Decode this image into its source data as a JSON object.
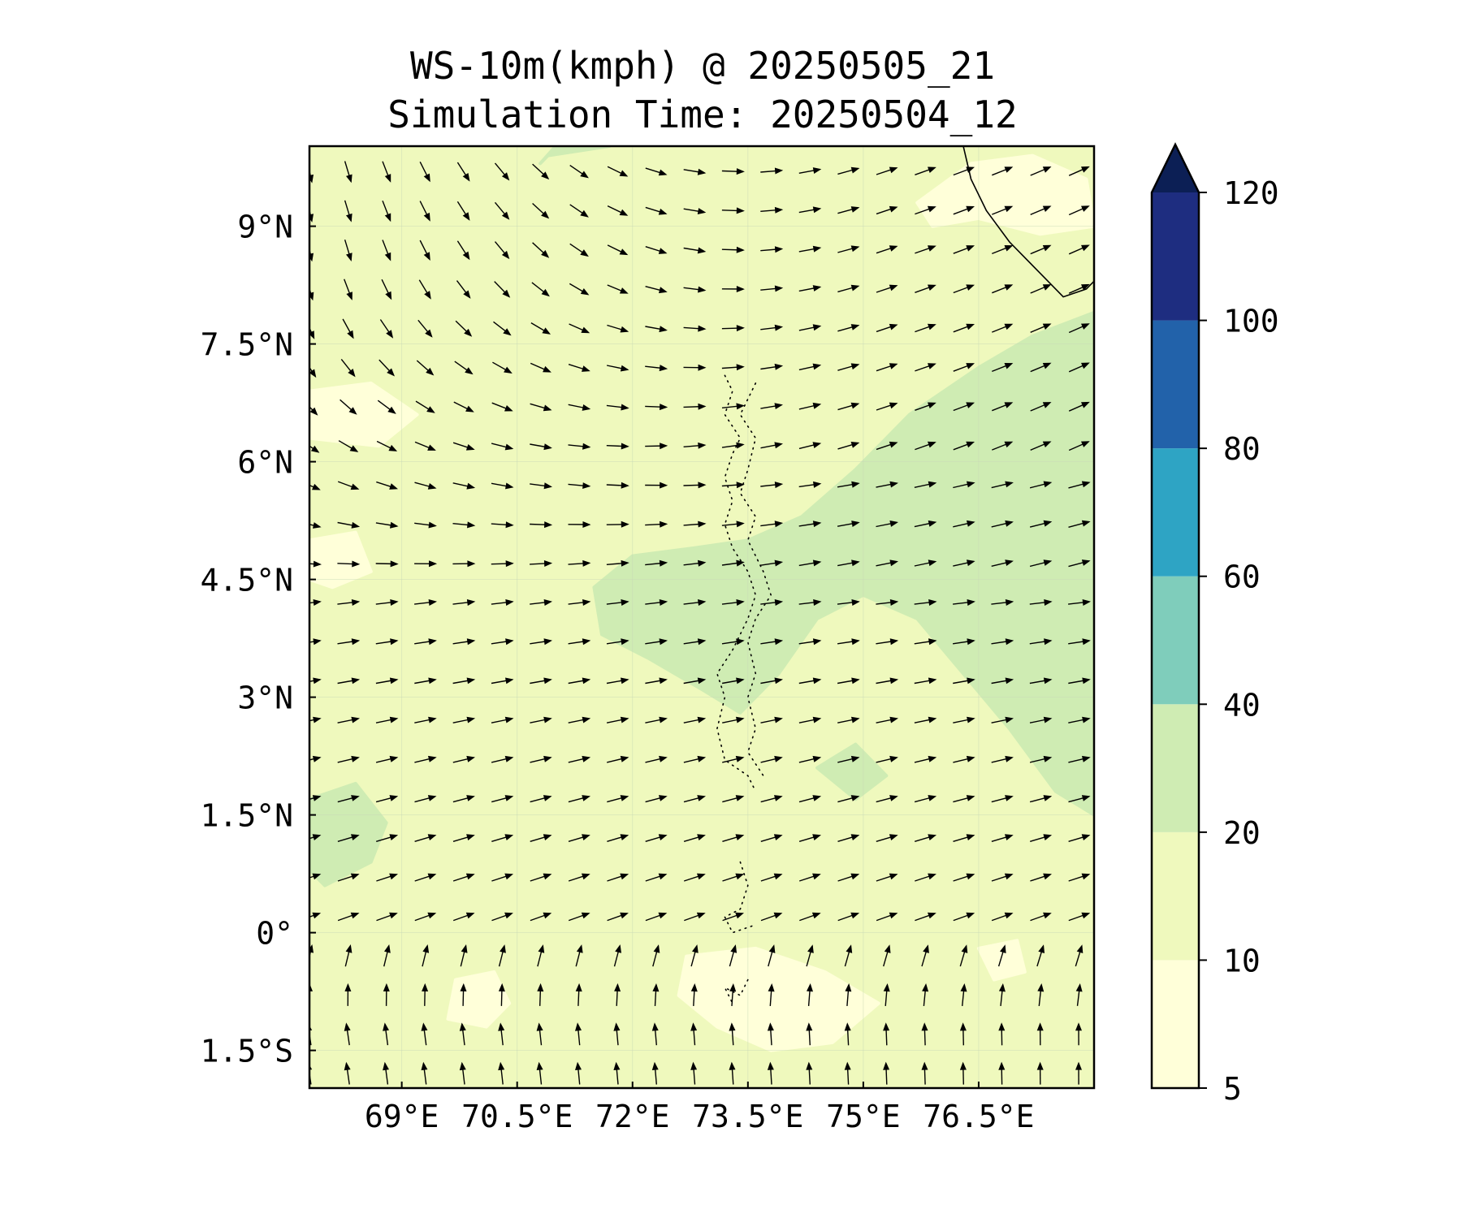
{
  "title": {
    "line1": "WS-10m(kmph) @ 20250505_21",
    "line2": "Simulation Time: 20250504_12"
  },
  "map": {
    "lon_range": [
      67.8,
      78.0
    ],
    "lat_range": [
      -1.98,
      10.02
    ],
    "lon_ticks": [
      {
        "value": 69.0,
        "label": "69°E"
      },
      {
        "value": 70.5,
        "label": "70.5°E"
      },
      {
        "value": 72.0,
        "label": "72°E"
      },
      {
        "value": 73.5,
        "label": "73.5°E"
      },
      {
        "value": 75.0,
        "label": "75°E"
      },
      {
        "value": 76.5,
        "label": "76.5°E"
      }
    ],
    "lat_ticks": [
      {
        "value": 9.0,
        "label": "9°N"
      },
      {
        "value": 7.5,
        "label": "7.5°N"
      },
      {
        "value": 6.0,
        "label": "6°N"
      },
      {
        "value": 4.5,
        "label": "4.5°N"
      },
      {
        "value": 3.0,
        "label": "3°N"
      },
      {
        "value": 1.5,
        "label": "1.5°N"
      },
      {
        "value": 0.0,
        "label": "0°"
      },
      {
        "value": -1.5,
        "label": "1.5°S"
      }
    ],
    "gridlines": true,
    "background_class": "10-20"
  },
  "colorbar": {
    "extend": "max",
    "levels": [
      {
        "from": 5,
        "to": 10,
        "color": "#ffffd9"
      },
      {
        "from": 10,
        "to": 20,
        "color": "#eff9bd"
      },
      {
        "from": 20,
        "to": 40,
        "color": "#cfecb3"
      },
      {
        "from": 40,
        "to": 60,
        "color": "#7fcdbb"
      },
      {
        "from": 60,
        "to": 80,
        "color": "#2ea4c4"
      },
      {
        "from": 80,
        "to": 100,
        "color": "#2262aa"
      },
      {
        "from": 100,
        "to": 120,
        "color": "#1e2d80"
      }
    ],
    "extend_color": "#0c1f55",
    "tick_labels": [
      "5",
      "10",
      "20",
      "40",
      "60",
      "80",
      "100",
      "120"
    ]
  },
  "speed_regions": [
    {
      "class": "20-40",
      "color": "#cfecb3",
      "polygon": [
        [
          74.9,
          5.9
        ],
        [
          75.6,
          6.6
        ],
        [
          76.5,
          7.2
        ],
        [
          77.2,
          7.6
        ],
        [
          78.0,
          7.9
        ],
        [
          78.0,
          1.5
        ],
        [
          77.5,
          1.8
        ],
        [
          76.9,
          2.6
        ],
        [
          76.3,
          3.3
        ],
        [
          75.7,
          4.0
        ],
        [
          75.0,
          4.3
        ],
        [
          74.4,
          4.0
        ],
        [
          73.9,
          3.3
        ],
        [
          73.4,
          2.8
        ],
        [
          72.9,
          3.1
        ],
        [
          72.2,
          3.5
        ],
        [
          71.6,
          3.8
        ],
        [
          71.5,
          4.4
        ],
        [
          72.0,
          4.8
        ],
        [
          72.8,
          4.9
        ],
        [
          73.5,
          5.0
        ],
        [
          74.2,
          5.3
        ]
      ]
    },
    {
      "class": "20-40",
      "color": "#cfecb3",
      "polygon": [
        [
          67.8,
          1.7
        ],
        [
          68.4,
          1.9
        ],
        [
          68.8,
          1.4
        ],
        [
          68.6,
          0.9
        ],
        [
          68.0,
          0.6
        ],
        [
          67.8,
          0.8
        ]
      ]
    },
    {
      "class": "20-40",
      "color": "#cfecb3",
      "polygon": [
        [
          70.9,
          9.9
        ],
        [
          71.7,
          10.02
        ],
        [
          71.0,
          10.02
        ],
        [
          70.8,
          9.8
        ]
      ]
    },
    {
      "class": "20-40",
      "color": "#cfecb3",
      "polygon": [
        [
          76.1,
          4.4
        ],
        [
          76.6,
          4.8
        ],
        [
          77.3,
          4.6
        ],
        [
          77.2,
          4.1
        ],
        [
          76.6,
          3.9
        ]
      ]
    },
    {
      "class": "20-40",
      "color": "#cfecb3",
      "polygon": [
        [
          74.4,
          2.1
        ],
        [
          74.9,
          2.4
        ],
        [
          75.3,
          2.0
        ],
        [
          74.9,
          1.7
        ]
      ]
    },
    {
      "class": "5-10",
      "color": "#ffffd9",
      "polygon": [
        [
          69.7,
          -0.6
        ],
        [
          70.2,
          -0.5
        ],
        [
          70.4,
          -0.9
        ],
        [
          70.1,
          -1.2
        ],
        [
          69.6,
          -1.1
        ]
      ]
    },
    {
      "class": "5-10",
      "color": "#ffffd9",
      "polygon": [
        [
          72.7,
          -0.3
        ],
        [
          73.6,
          -0.2
        ],
        [
          74.5,
          -0.5
        ],
        [
          75.2,
          -0.9
        ],
        [
          74.6,
          -1.4
        ],
        [
          73.8,
          -1.5
        ],
        [
          73.1,
          -1.2
        ],
        [
          72.6,
          -0.8
        ]
      ]
    },
    {
      "class": "5-10",
      "color": "#ffffd9",
      "polygon": [
        [
          75.7,
          9.3
        ],
        [
          76.4,
          9.8
        ],
        [
          77.2,
          9.9
        ],
        [
          77.9,
          9.6
        ],
        [
          78.0,
          9.0
        ],
        [
          77.3,
          8.9
        ],
        [
          76.5,
          9.1
        ],
        [
          75.9,
          9.0
        ]
      ]
    },
    {
      "class": "5-10",
      "color": "#ffffd9",
      "polygon": [
        [
          67.8,
          6.9
        ],
        [
          68.6,
          7.0
        ],
        [
          69.2,
          6.6
        ],
        [
          68.7,
          6.2
        ],
        [
          67.8,
          6.3
        ]
      ]
    },
    {
      "class": "5-10",
      "color": "#ffffd9",
      "polygon": [
        [
          67.8,
          5.0
        ],
        [
          68.4,
          5.1
        ],
        [
          68.6,
          4.6
        ],
        [
          68.1,
          4.4
        ],
        [
          67.8,
          4.5
        ]
      ]
    },
    {
      "class": "5-10",
      "color": "#ffffd9",
      "polygon": [
        [
          76.5,
          -0.2
        ],
        [
          77.0,
          -0.1
        ],
        [
          77.1,
          -0.5
        ],
        [
          76.7,
          -0.6
        ]
      ]
    }
  ],
  "coastline": [
    [
      76.3,
      10.02
    ],
    [
      76.4,
      9.6
    ],
    [
      76.6,
      9.2
    ],
    [
      76.9,
      8.8
    ],
    [
      77.3,
      8.4
    ],
    [
      77.6,
      8.1
    ],
    [
      77.9,
      8.2
    ],
    [
      78.0,
      8.3
    ]
  ],
  "island_outlines": [
    [
      [
        73.2,
        7.1
      ],
      [
        73.3,
        6.9
      ],
      [
        73.2,
        6.6
      ],
      [
        73.4,
        6.3
      ],
      [
        73.3,
        6.1
      ],
      [
        73.2,
        5.8
      ],
      [
        73.3,
        5.5
      ],
      [
        73.2,
        5.2
      ],
      [
        73.3,
        4.9
      ],
      [
        73.5,
        4.6
      ],
      [
        73.6,
        4.3
      ],
      [
        73.5,
        4.0
      ],
      [
        73.3,
        3.6
      ],
      [
        73.1,
        3.3
      ],
      [
        73.2,
        3.0
      ],
      [
        73.1,
        2.6
      ],
      [
        73.2,
        2.2
      ],
      [
        73.5,
        2.0
      ],
      [
        73.6,
        1.8
      ]
    ],
    [
      [
        73.6,
        7.0
      ],
      [
        73.4,
        6.6
      ],
      [
        73.6,
        6.3
      ],
      [
        73.5,
        5.9
      ],
      [
        73.4,
        5.6
      ],
      [
        73.6,
        5.3
      ],
      [
        73.5,
        5.0
      ],
      [
        73.7,
        4.6
      ],
      [
        73.8,
        4.3
      ],
      [
        73.6,
        4.0
      ],
      [
        73.5,
        3.7
      ],
      [
        73.6,
        3.3
      ],
      [
        73.5,
        3.0
      ],
      [
        73.6,
        2.6
      ],
      [
        73.5,
        2.3
      ],
      [
        73.7,
        2.0
      ]
    ],
    [
      [
        73.4,
        0.9
      ],
      [
        73.5,
        0.6
      ],
      [
        73.4,
        0.3
      ],
      [
        73.2,
        0.2
      ],
      [
        73.3,
        0.0
      ],
      [
        73.6,
        0.1
      ]
    ],
    [
      [
        73.5,
        -0.6
      ],
      [
        73.4,
        -0.8
      ],
      [
        73.2,
        -0.7
      ],
      [
        73.3,
        -0.9
      ]
    ]
  ],
  "wind_grid": {
    "lon_start": 67.8,
    "lon_step": 0.5,
    "lon_count": 21,
    "lat_start": -1.8,
    "lat_step": 0.5,
    "lat_count": 24
  }
}
